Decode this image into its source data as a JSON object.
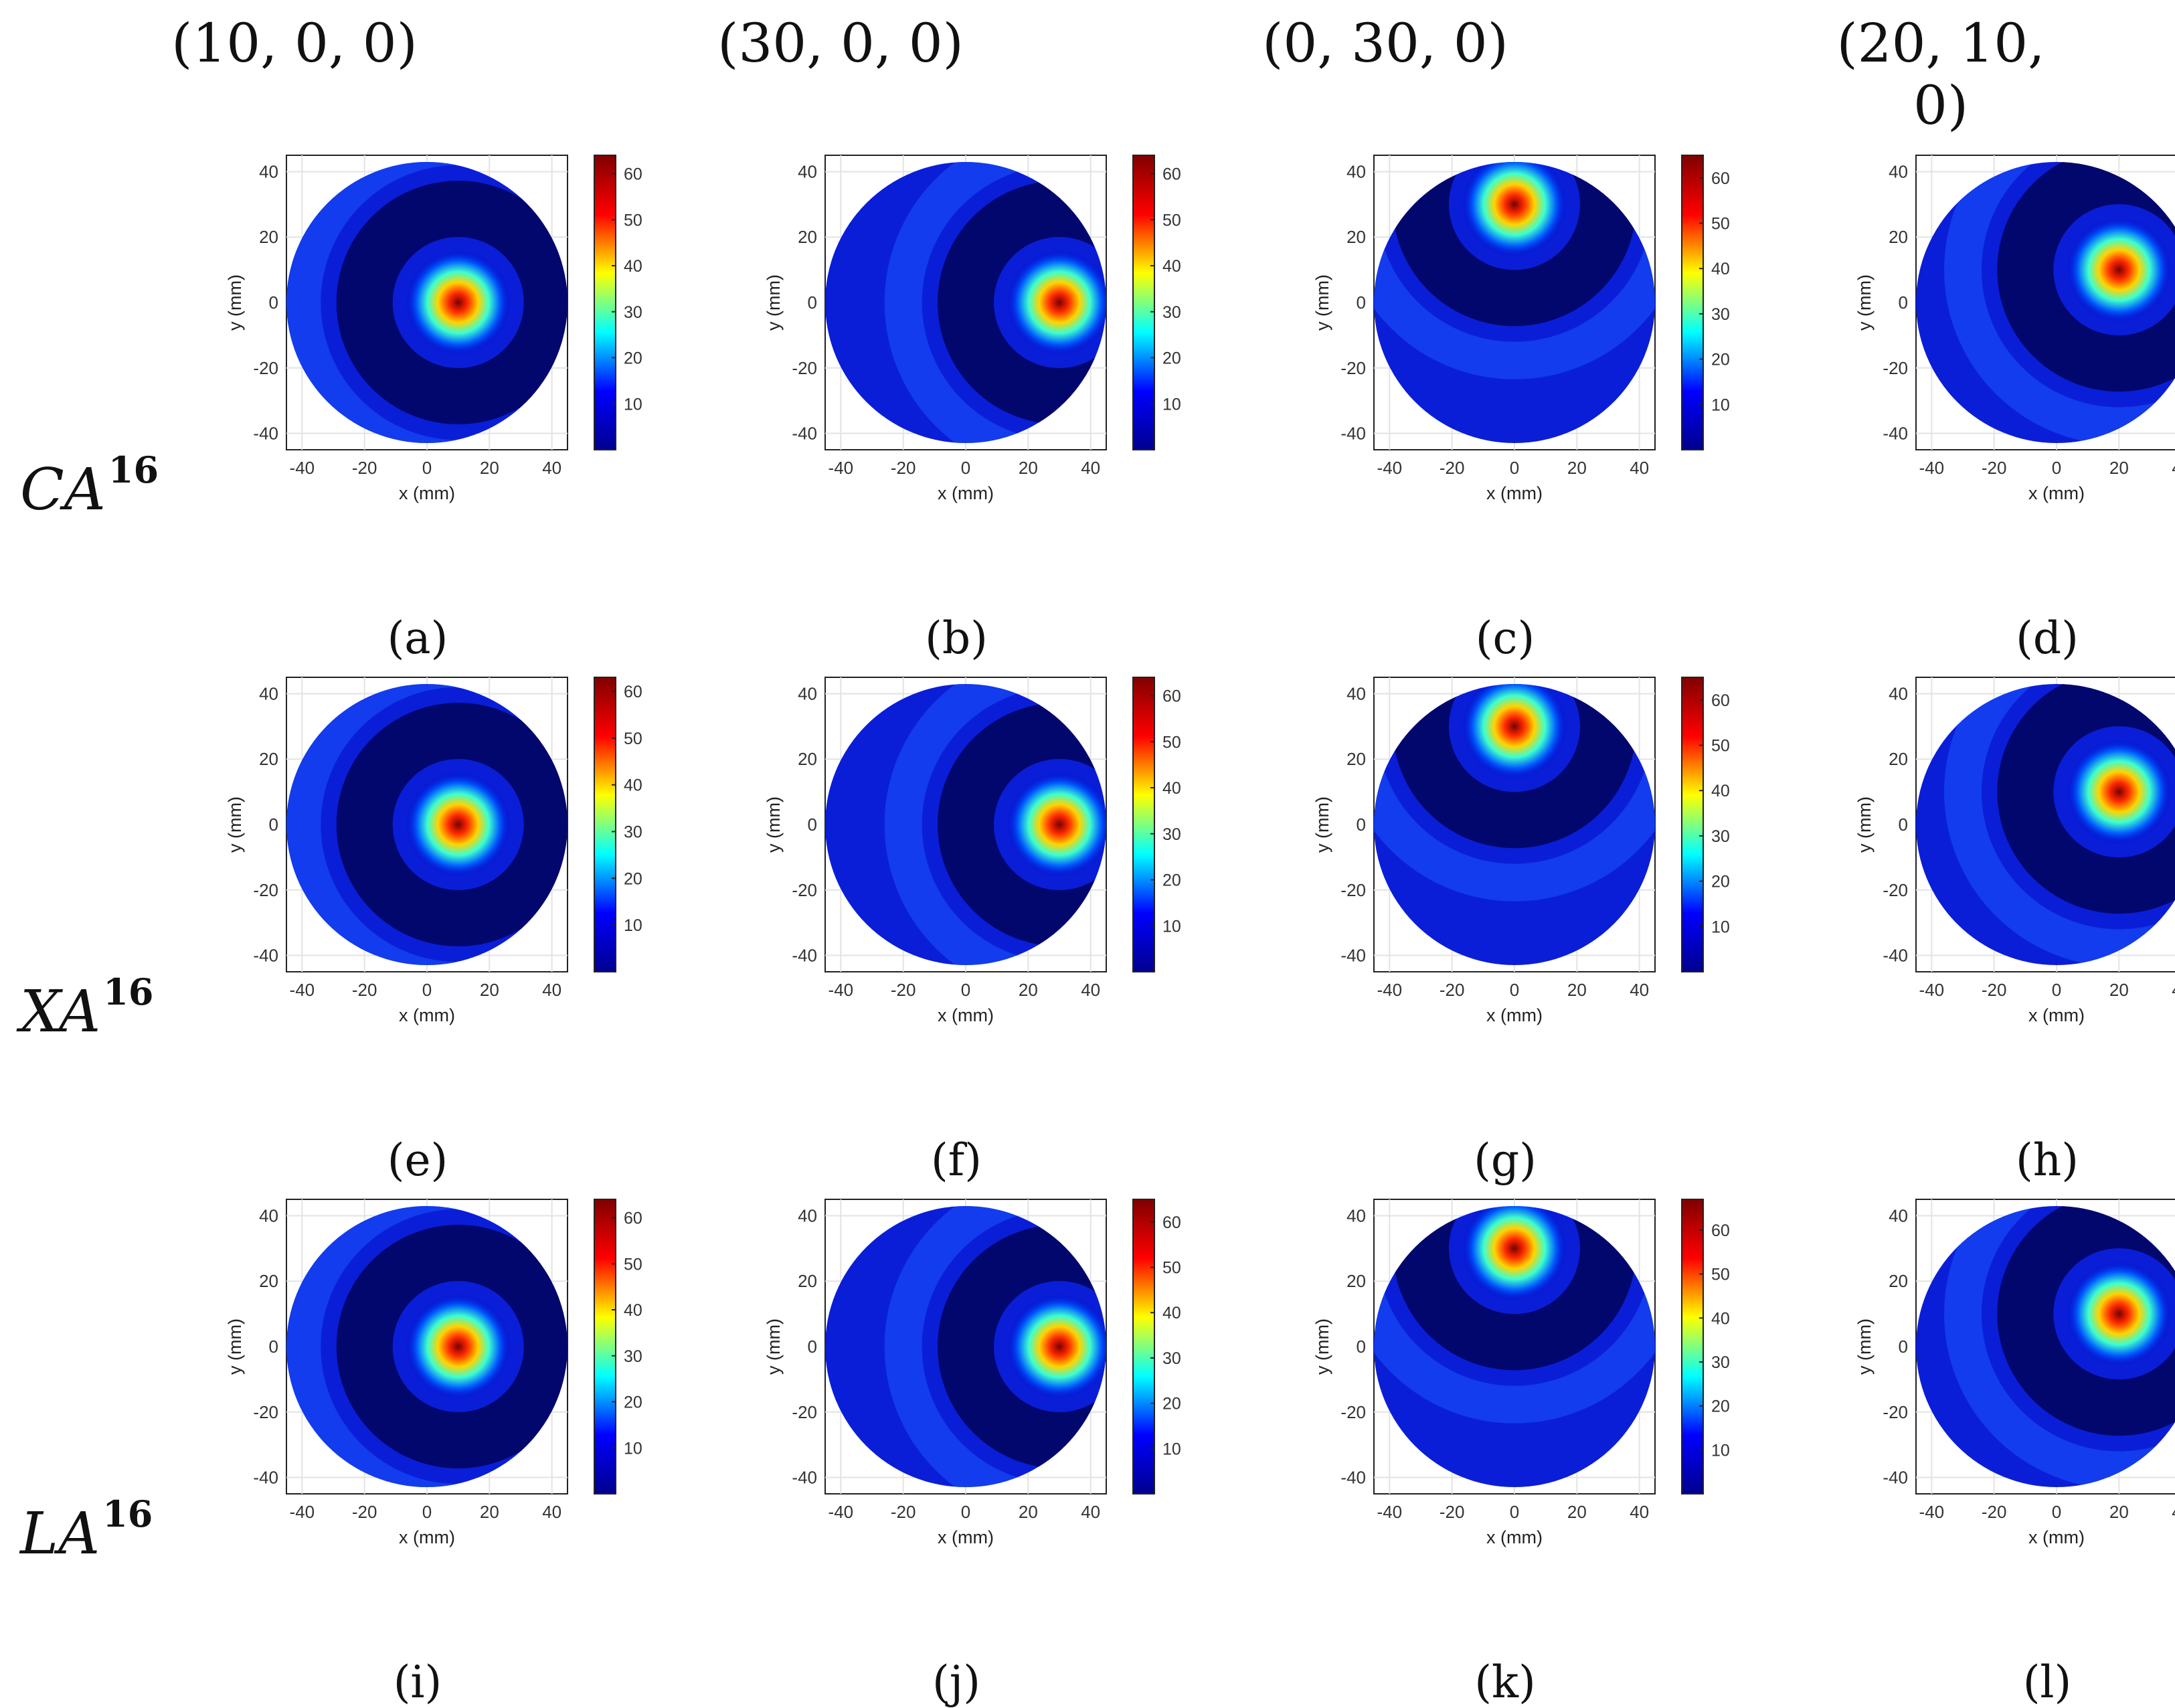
{
  "column_headers": [
    "(10, 0, 0)",
    "(30, 0, 0)",
    "(0, 30, 0)",
    "(20, 10, 0)"
  ],
  "row_labels": [
    {
      "base": "CA",
      "sup": "16"
    },
    {
      "base": "XA",
      "sup": "16"
    },
    {
      "base": "LA",
      "sup": "16"
    }
  ],
  "chart_data": {
    "type": "heatmap",
    "xlabel": "x (mm)",
    "ylabel": "y (mm)",
    "xlim": [
      -45,
      45
    ],
    "ylim": [
      -45,
      45
    ],
    "xticks": [
      -40,
      -20,
      0,
      20,
      40
    ],
    "yticks": [
      -40,
      -20,
      0,
      20,
      40
    ],
    "colorbar_ticks": [
      10,
      20,
      30,
      40,
      50,
      60
    ],
    "colormap": [
      "#00008f",
      "#0000ff",
      "#00ffff",
      "#ffff00",
      "#ff0000",
      "#800000"
    ],
    "grid": true,
    "panels": [
      {
        "label": "(a)",
        "focus": [
          10,
          0
        ],
        "peak": 64
      },
      {
        "label": "(b)",
        "focus": [
          30,
          0
        ],
        "peak": 64
      },
      {
        "label": "(c)",
        "focus": [
          0,
          30
        ],
        "peak": 65
      },
      {
        "label": "(d)",
        "focus": [
          20,
          10
        ],
        "peak": 64
      },
      {
        "label": "(e)",
        "focus": [
          10,
          0
        ],
        "peak": 63
      },
      {
        "label": "(f)",
        "focus": [
          30,
          0
        ],
        "peak": 64
      },
      {
        "label": "(g)",
        "focus": [
          0,
          30
        ],
        "peak": 65
      },
      {
        "label": "(h)",
        "focus": [
          20,
          10
        ],
        "peak": 63
      },
      {
        "label": "(i)",
        "focus": [
          10,
          0
        ],
        "peak": 64
      },
      {
        "label": "(j)",
        "focus": [
          30,
          0
        ],
        "peak": 65
      },
      {
        "label": "(k)",
        "focus": [
          0,
          30
        ],
        "peak": 67
      },
      {
        "label": "(l)",
        "focus": [
          20,
          10
        ],
        "peak": 64
      }
    ]
  }
}
